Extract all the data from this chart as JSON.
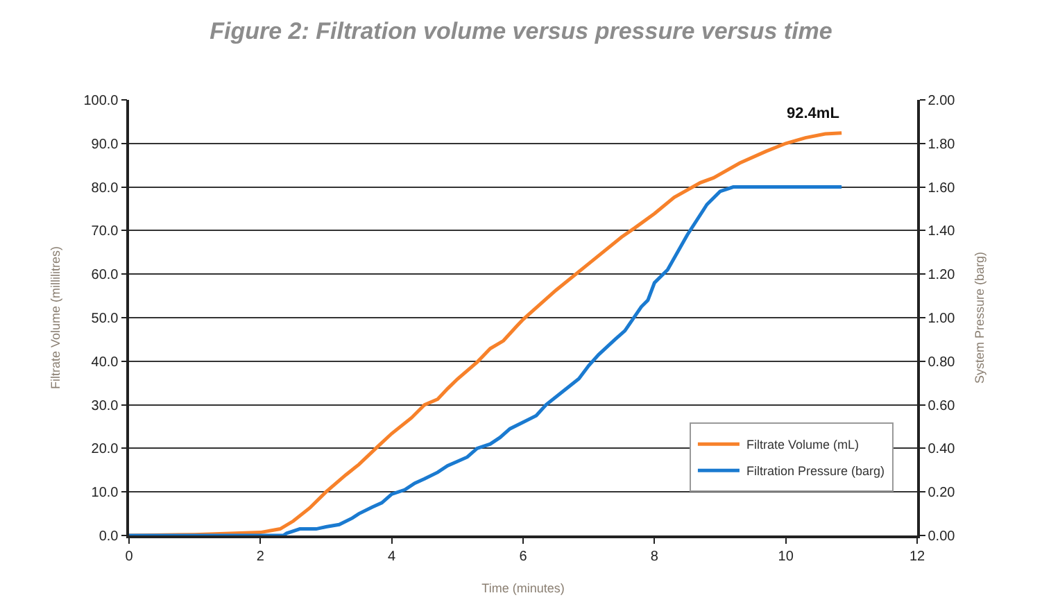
{
  "chart_data": {
    "type": "line",
    "title": "Figure 2: Filtration volume versus pressure versus time",
    "xlabel": "Time (minutes)",
    "ylabel": "Filtrate Volume (millilitres)",
    "y2label": "System Pressure (barg)",
    "series": [
      {
        "name": "Filtrate Volume (mL)",
        "color": "#f7812a",
        "x": [
          0,
          1,
          2.0,
          2.3,
          2.5,
          2.75,
          3.0,
          3.3,
          3.5,
          3.8,
          4.0,
          4.3,
          4.5,
          4.7,
          4.85,
          5.0,
          5.3,
          5.5,
          5.7,
          5.9,
          6.0,
          6.5,
          7.0,
          7.5,
          7.7,
          8.0,
          8.3,
          8.7,
          8.9,
          9.3,
          9.7,
          10.0,
          10.3,
          10.6,
          10.85
        ],
        "values": [
          0,
          0.2,
          0.7,
          1.5,
          3.3,
          6.3,
          10,
          13.9,
          16.3,
          20.6,
          23.4,
          27,
          30,
          31.3,
          33.7,
          35.9,
          39.8,
          42.9,
          44.7,
          48,
          49.6,
          56.3,
          62.4,
          68.5,
          70.6,
          73.9,
          77.6,
          81,
          82.1,
          85.5,
          88.2,
          90,
          91.3,
          92.2,
          92.4
        ]
      },
      {
        "name": "Filtration Pressure (barg)",
        "color": "#1a7ad0",
        "axis": "y2",
        "x": [
          0,
          2.35,
          2.4,
          2.6,
          2.85,
          3.0,
          3.2,
          3.4,
          3.5,
          3.7,
          3.85,
          4.0,
          4.2,
          4.35,
          4.5,
          4.7,
          4.85,
          5.0,
          5.15,
          5.3,
          5.5,
          5.65,
          5.8,
          6.0,
          6.2,
          6.35,
          6.6,
          6.85,
          7.0,
          7.15,
          7.4,
          7.55,
          7.8,
          7.9,
          8.0,
          8.2,
          8.5,
          8.8,
          9.0,
          9.2,
          10.85
        ],
        "values": [
          0,
          0,
          0.01,
          0.03,
          0.03,
          0.04,
          0.05,
          0.08,
          0.1,
          0.13,
          0.15,
          0.19,
          0.21,
          0.24,
          0.26,
          0.29,
          0.32,
          0.34,
          0.36,
          0.4,
          0.42,
          0.45,
          0.49,
          0.52,
          0.55,
          0.6,
          0.66,
          0.72,
          0.78,
          0.83,
          0.9,
          0.94,
          1.05,
          1.08,
          1.16,
          1.22,
          1.38,
          1.52,
          1.58,
          1.6,
          1.6
        ]
      }
    ],
    "xlim": [
      0,
      12
    ],
    "xticks": [
      0,
      2,
      4,
      6,
      8,
      10,
      12
    ],
    "ylim": [
      0,
      100
    ],
    "yticks": [
      {
        "value": 0,
        "label": "0.0"
      },
      {
        "value": 10,
        "label": "10.0"
      },
      {
        "value": 20,
        "label": "20.0"
      },
      {
        "value": 30,
        "label": "30.0"
      },
      {
        "value": 40,
        "label": "40.0"
      },
      {
        "value": 50,
        "label": "50.0"
      },
      {
        "value": 60,
        "label": "60.0"
      },
      {
        "value": 70,
        "label": "70.0"
      },
      {
        "value": 80,
        "label": "80.0"
      },
      {
        "value": 90,
        "label": "90.0"
      },
      {
        "value": 100,
        "label": "100.0"
      }
    ],
    "y2lim": [
      0,
      2
    ],
    "y2ticks": [
      {
        "value": 0,
        "label": "0.00"
      },
      {
        "value": 0.2,
        "label": "0.20"
      },
      {
        "value": 0.4,
        "label": "0.40"
      },
      {
        "value": 0.6,
        "label": "0.60"
      },
      {
        "value": 0.8,
        "label": "0.80"
      },
      {
        "value": 1.0,
        "label": "1.00"
      },
      {
        "value": 1.2,
        "label": "1.20"
      },
      {
        "value": 1.4,
        "label": "1.40"
      },
      {
        "value": 1.6,
        "label": "1.60"
      },
      {
        "value": 1.8,
        "label": "1.80"
      },
      {
        "value": 2.0,
        "label": "2.00"
      }
    ],
    "annotations": [
      {
        "text": "92.4mL",
        "x": 10.85,
        "y": 92.4
      }
    ],
    "grid": "y",
    "legend": "bottom right",
    "marker": "none",
    "line_style": "solid"
  }
}
